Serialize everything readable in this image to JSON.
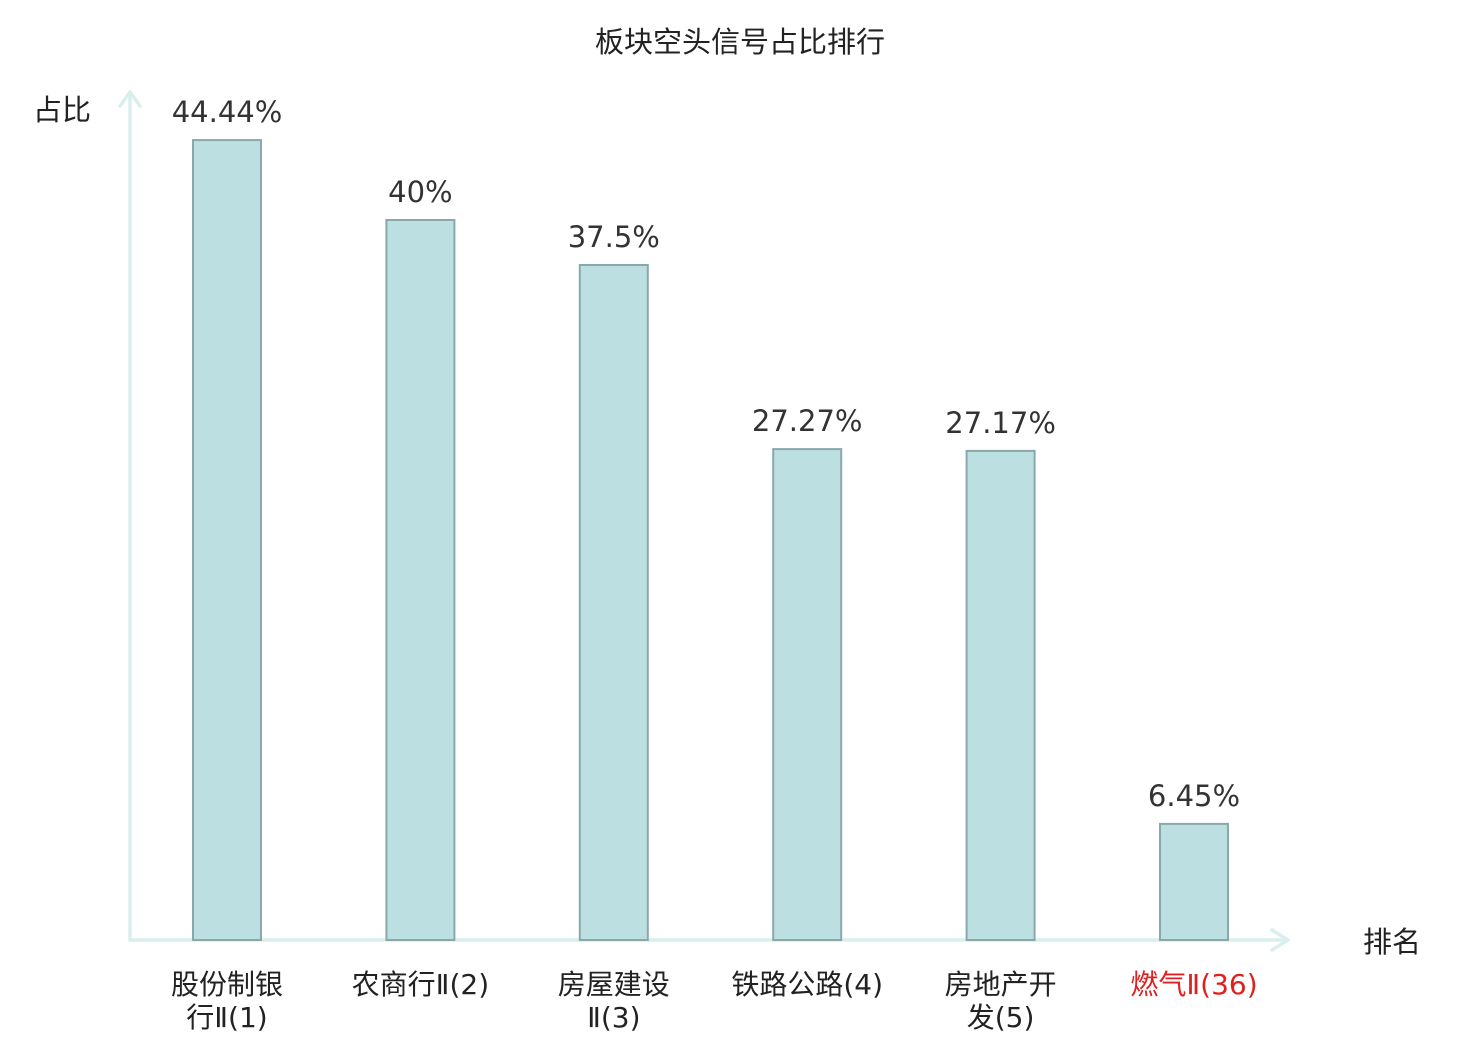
{
  "chart_data": {
    "type": "bar",
    "title": "板块空头信号占比排行",
    "ylabel": "占比",
    "xlabel": "排名",
    "categories": [
      [
        "股份制银",
        "行Ⅱ(1)"
      ],
      [
        "农商行Ⅱ(2)"
      ],
      [
        "房屋建设",
        "Ⅱ(3)"
      ],
      [
        "铁路公路(4)"
      ],
      [
        "房地产开",
        "发(5)"
      ],
      [
        "燃气Ⅱ(36)"
      ]
    ],
    "values": [
      44.44,
      40,
      37.5,
      27.27,
      27.17,
      6.45
    ],
    "value_labels": [
      "44.44%",
      "40%",
      "37.5%",
      "27.27%",
      "27.17%",
      "6.45%"
    ],
    "highlight_index": 5,
    "ylim": [
      0,
      50
    ],
    "grid": false,
    "legend": "none",
    "colors": {
      "bar_fill": "#bce0e2",
      "bar_stroke": "#8aa8aa",
      "axis": "#d9efee",
      "text": "#222222",
      "value_text": "#333333",
      "highlight_text": "#e02020"
    }
  }
}
